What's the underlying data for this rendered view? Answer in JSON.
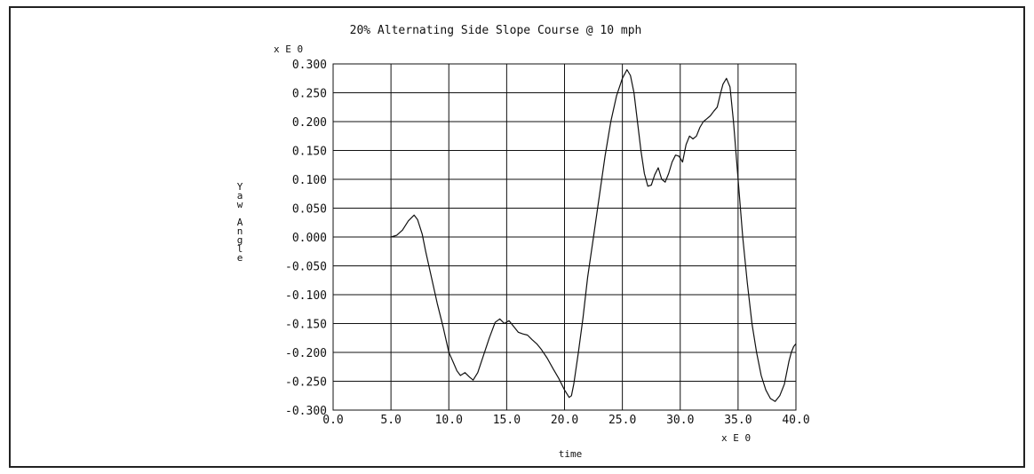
{
  "chart_data": {
    "type": "line",
    "title": "20% Alternating Side Slope Course @ 10 mph",
    "xlabel": "time",
    "ylabel": "Yaw Angle",
    "x_multiplier_label": "x E  0",
    "y_multiplier_label": "x E  0",
    "xlim": [
      0.0,
      40.0
    ],
    "ylim": [
      -0.3,
      0.3
    ],
    "grid": true,
    "x_ticks": [
      "0.0",
      "5.0",
      "10.0",
      "15.0",
      "20.0",
      "25.0",
      "30.0",
      "35.0",
      "40.0"
    ],
    "y_ticks": [
      "0.300",
      "0.250",
      "0.200",
      "0.150",
      "0.100",
      "0.050",
      "0.000",
      "-0.050",
      "-0.100",
      "-0.150",
      "-0.200",
      "-0.250",
      "-0.300"
    ],
    "series": [
      {
        "x": [
          5.0,
          5.5,
          6.0,
          6.5,
          7.0,
          7.3,
          7.7,
          8.0,
          8.5,
          9.0,
          9.5,
          10.0,
          10.4,
          10.7,
          11.0,
          11.4,
          11.8,
          12.1,
          12.5,
          13.0,
          13.5,
          14.0,
          14.4,
          14.8,
          15.2,
          15.6,
          16.0,
          16.4,
          16.8,
          17.2,
          17.6,
          18.0,
          18.5,
          19.0,
          19.5,
          20.0,
          20.4,
          20.6,
          20.8,
          21.2,
          21.6,
          22.0,
          22.5,
          23.0,
          23.5,
          24.0,
          24.5,
          25.0,
          25.4,
          25.7,
          26.0,
          26.3,
          26.6,
          26.9,
          27.2,
          27.5,
          27.8,
          28.1,
          28.4,
          28.7,
          29.0,
          29.3,
          29.6,
          29.9,
          30.2,
          30.5,
          30.8,
          31.1,
          31.4,
          31.7,
          32.0,
          32.3,
          32.6,
          32.9,
          33.2,
          33.5,
          33.7,
          34.0,
          34.3,
          34.6,
          35.0,
          35.4,
          35.8,
          36.2,
          36.6,
          37.0,
          37.4,
          37.8,
          38.2,
          38.6,
          39.0,
          39.2,
          39.4,
          39.6,
          39.8,
          40.0
        ],
        "y": [
          0.0,
          0.003,
          0.012,
          0.028,
          0.038,
          0.03,
          0.005,
          -0.025,
          -0.07,
          -0.115,
          -0.155,
          -0.2,
          -0.218,
          -0.232,
          -0.24,
          -0.235,
          -0.243,
          -0.248,
          -0.235,
          -0.205,
          -0.175,
          -0.148,
          -0.142,
          -0.15,
          -0.145,
          -0.155,
          -0.165,
          -0.168,
          -0.17,
          -0.178,
          -0.185,
          -0.195,
          -0.21,
          -0.228,
          -0.245,
          -0.265,
          -0.278,
          -0.275,
          -0.255,
          -0.2,
          -0.14,
          -0.07,
          0.0,
          0.07,
          0.14,
          0.2,
          0.245,
          0.275,
          0.29,
          0.28,
          0.25,
          0.2,
          0.15,
          0.11,
          0.088,
          0.09,
          0.108,
          0.12,
          0.1,
          0.095,
          0.11,
          0.13,
          0.142,
          0.14,
          0.13,
          0.16,
          0.175,
          0.17,
          0.175,
          0.19,
          0.2,
          0.205,
          0.21,
          0.218,
          0.225,
          0.25,
          0.265,
          0.275,
          0.26,
          0.2,
          0.1,
          0.0,
          -0.08,
          -0.15,
          -0.2,
          -0.24,
          -0.265,
          -0.28,
          -0.285,
          -0.275,
          -0.255,
          -0.235,
          -0.215,
          -0.2,
          -0.19,
          -0.185
        ]
      }
    ]
  }
}
